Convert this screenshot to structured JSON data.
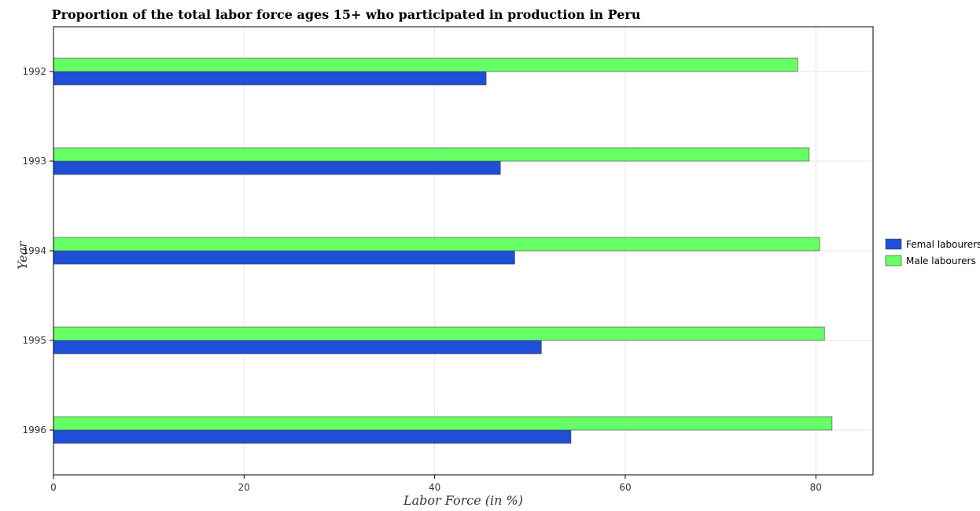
{
  "chart_data": {
    "type": "bar",
    "orientation": "horizontal",
    "title": "Proportion of the total labor force ages 15+ who participated in production in Peru",
    "xlabel": "Labor Force (in %)",
    "ylabel": "Year",
    "categories": [
      "1992",
      "1993",
      "1994",
      "1995",
      "1996"
    ],
    "series": [
      {
        "name": "Femal labourers",
        "color": "#1f4fd8",
        "values": [
          45.4,
          46.9,
          48.4,
          51.2,
          54.3
        ]
      },
      {
        "name": "Male labourers",
        "color": "#66ff66",
        "values": [
          78.1,
          79.3,
          80.4,
          80.9,
          81.7
        ]
      }
    ],
    "xticks": [
      "0",
      "20",
      "40",
      "60",
      "80"
    ],
    "xlim": [
      0,
      86
    ],
    "grid": true,
    "legend_position": "right"
  }
}
